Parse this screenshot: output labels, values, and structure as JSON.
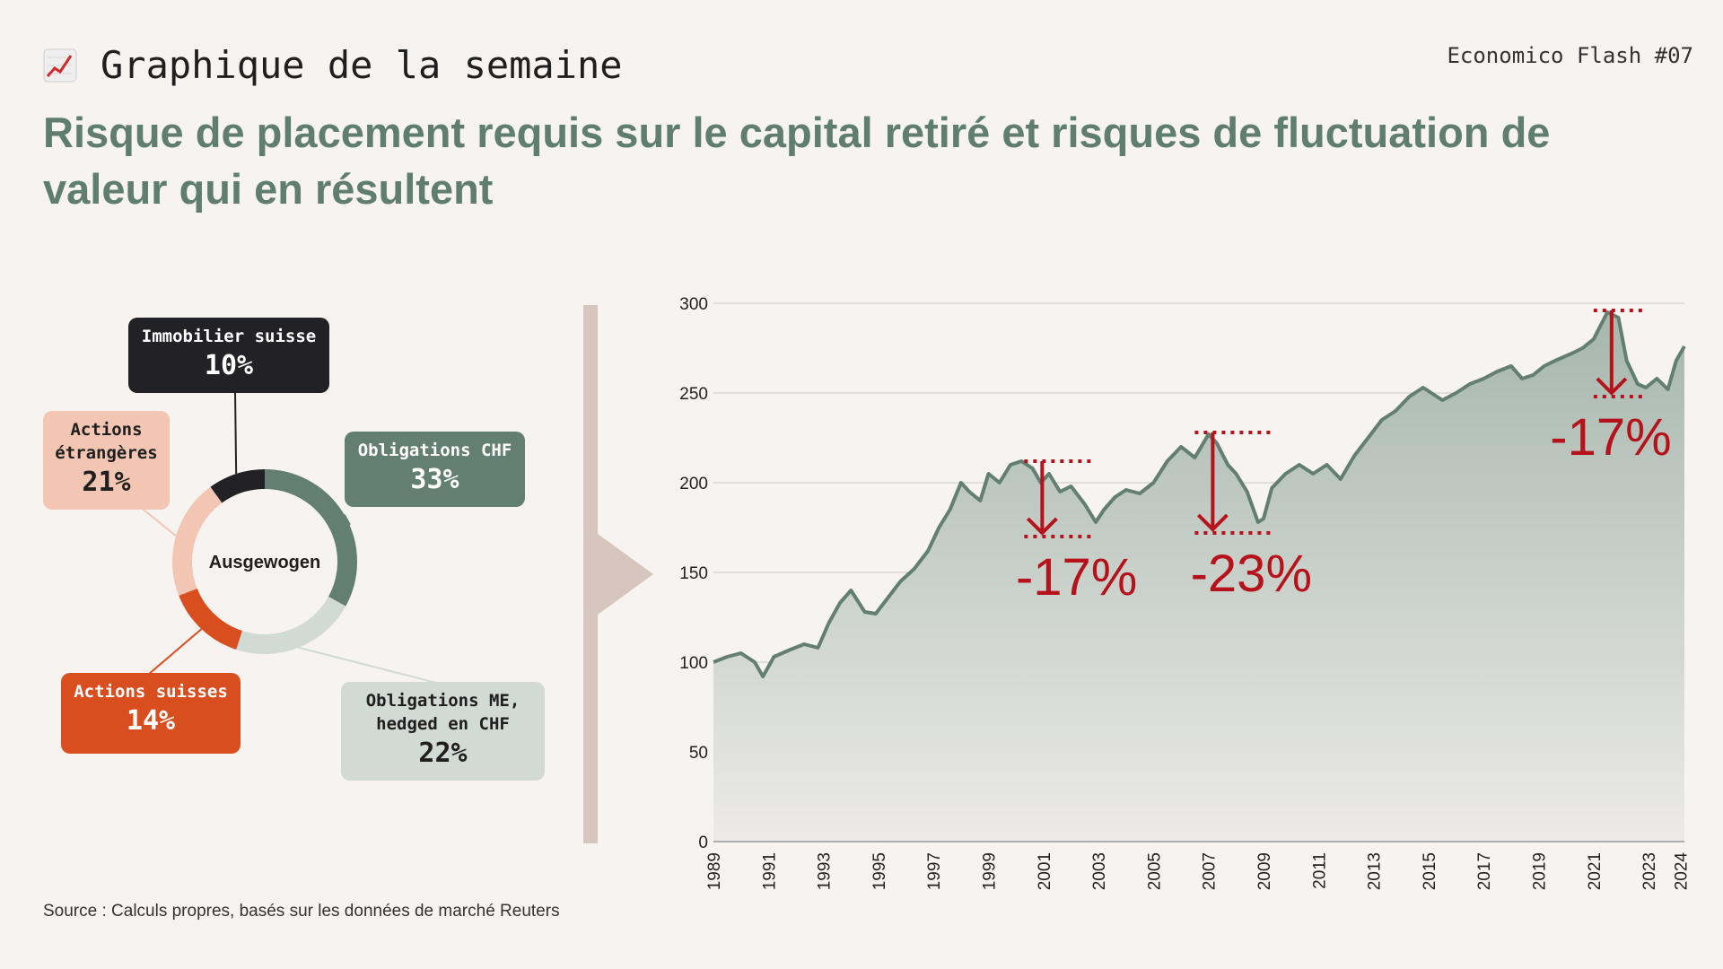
{
  "header": {
    "kicker_icon": "chart-increasing-icon",
    "kicker": "Graphique de la semaine",
    "flash": "Economico Flash #07",
    "title": "Risque de placement requis sur le capital retiré et risques de fluctuation de valeur qui en résultent"
  },
  "donut": {
    "center_label": "Ausgewogen",
    "segments": [
      {
        "name": "Obligations CHF",
        "label": "Obligations CHF",
        "pct_text": "33%",
        "value": 33,
        "color": "#637f71"
      },
      {
        "name": "Obligations ME, hedged en CHF",
        "label": "Obligations ME,\nhedged en CHF",
        "pct_text": "22%",
        "value": 22,
        "color": "#d2dad5"
      },
      {
        "name": "Actions suisses",
        "label": "Actions suisses",
        "pct_text": "14%",
        "value": 14,
        "color": "#d94e1f"
      },
      {
        "name": "Actions étrangères",
        "label": "Actions\nétrangères",
        "pct_text": "21%",
        "value": 21,
        "color": "#f3c5b3"
      },
      {
        "name": "Immobilier suisse",
        "label": "Immobilier suisse",
        "pct_text": "10%",
        "value": 10,
        "color": "#222226"
      }
    ]
  },
  "chart_data": {
    "type": "area",
    "ylim": [
      0,
      300
    ],
    "xlim": [
      1989,
      2024.3
    ],
    "yticks": [
      0,
      50,
      100,
      150,
      200,
      250,
      300
    ],
    "xticks": [
      "1989",
      "1991",
      "1993",
      "1995",
      "1997",
      "1999",
      "2001",
      "2003",
      "2005",
      "2007",
      "2009",
      "2011",
      "2013",
      "2015",
      "2017",
      "2019",
      "2021",
      "2023",
      "2024"
    ],
    "series": [
      {
        "x": [
          1989,
          1989.5,
          1990,
          1990.5,
          1990.8,
          1991.2,
          1991.8,
          1992.3,
          1992.8,
          1993.2,
          1993.6,
          1994,
          1994.5,
          1994.9,
          1995.3,
          1995.8,
          1996.3,
          1996.8,
          1997.2,
          1997.6,
          1998,
          1998.3,
          1998.7,
          1999,
          1999.4,
          1999.8,
          2000.2,
          2000.6,
          2000.9,
          2001.2,
          2001.6,
          2002,
          2002.5,
          2002.9,
          2003.2,
          2003.6,
          2004,
          2004.5,
          2005,
          2005.5,
          2006,
          2006.5,
          2007,
          2007.3,
          2007.7,
          2008,
          2008.4,
          2008.8,
          2009,
          2009.3,
          2009.8,
          2010.3,
          2010.8,
          2011.3,
          2011.8,
          2012.3,
          2012.8,
          2013.3,
          2013.8,
          2014.3,
          2014.8,
          2015.1,
          2015.5,
          2016,
          2016.5,
          2017,
          2017.5,
          2018,
          2018.4,
          2018.8,
          2019.2,
          2019.6,
          2020.2,
          2020.6,
          2021,
          2021.5,
          2021.9,
          2022.2,
          2022.6,
          2022.9,
          2023.3,
          2023.7,
          2024,
          2024.3
        ],
        "y": [
          100,
          103,
          105,
          100,
          92,
          103,
          107,
          110,
          108,
          122,
          133,
          140,
          128,
          127,
          135,
          145,
          152,
          162,
          175,
          185,
          200,
          195,
          190,
          205,
          200,
          210,
          212,
          208,
          200,
          205,
          195,
          198,
          188,
          178,
          185,
          192,
          196,
          194,
          200,
          212,
          220,
          214,
          227,
          222,
          210,
          205,
          195,
          178,
          180,
          197,
          205,
          210,
          205,
          210,
          202,
          215,
          225,
          235,
          240,
          248,
          253,
          250,
          246,
          250,
          255,
          258,
          262,
          265,
          258,
          260,
          265,
          268,
          272,
          275,
          280,
          295,
          292,
          268,
          255,
          253,
          258,
          252,
          268,
          276
        ]
      }
    ],
    "annotations": [
      {
        "label": "-17%",
        "x_start": 2000.3,
        "x_end": 2002.8,
        "peak": 212,
        "trough": 170
      },
      {
        "label": "-23%",
        "x_start": 2006.5,
        "x_end": 2009.3,
        "peak": 228,
        "trough": 172
      },
      {
        "label": "-17%",
        "x_start": 2021.0,
        "x_end": 2022.9,
        "peak": 296,
        "trough": 248
      }
    ],
    "source": "Source : Calculs propres, basés sur les données de marché Reuters"
  }
}
